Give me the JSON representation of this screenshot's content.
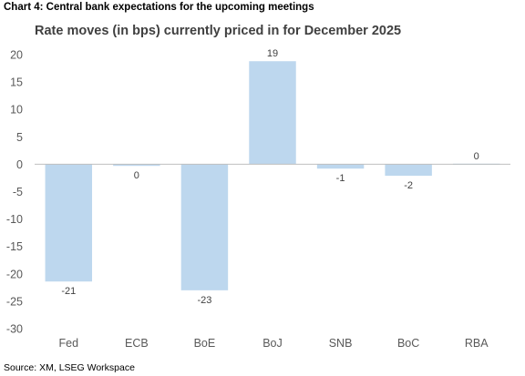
{
  "header": "Chart 4: Central bank expectations for the upcoming meetings",
  "source": "Source: XM, LSEG Workspace",
  "colors": {
    "bar": "#bdd7ee",
    "zero_line": "#bfbfbf",
    "text": "#595959"
  },
  "chart_data": {
    "type": "bar",
    "title": "Rate moves (in bps) currently priced in for December 2025",
    "xlabel": "",
    "ylabel": "",
    "categories": [
      "Fed",
      "ECB",
      "BoE",
      "BoJ",
      "SNB",
      "BoC",
      "RBA"
    ],
    "values": [
      -21.4,
      -0.3,
      -23,
      18.8,
      -0.8,
      -2.1,
      0.1
    ],
    "data_labels": [
      "-21",
      "0",
      "-23",
      "19",
      "-1",
      "-2",
      "0"
    ],
    "ylim": [
      -30,
      20
    ],
    "yticks": [
      20,
      15,
      10,
      5,
      0,
      -5,
      -10,
      -15,
      -20,
      -25,
      -30
    ],
    "grid": false,
    "legend": "none"
  }
}
